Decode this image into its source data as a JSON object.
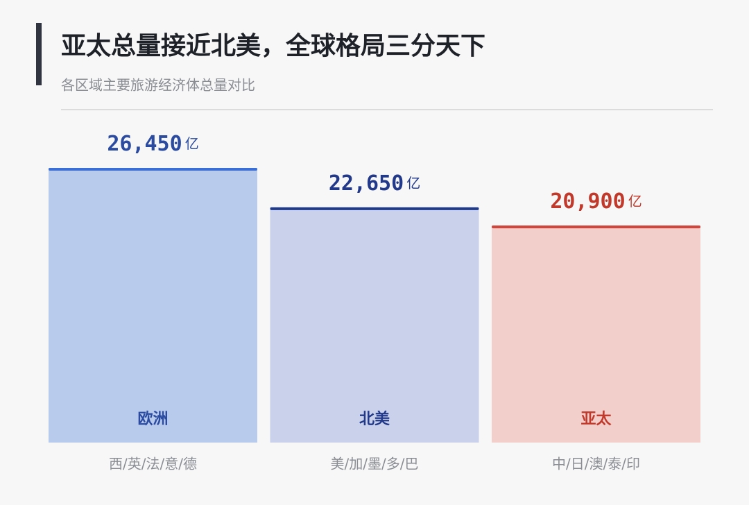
{
  "chart_data": {
    "type": "bar",
    "title": "亚太总量接近北美，全球格局三分天下",
    "subtitle": "各区域主要旅游经济体总量对比",
    "unit": "亿",
    "categories": [
      "欧洲",
      "北美",
      "亚太"
    ],
    "sublabels": [
      "西/英/法/意/德",
      "美/加/墨/多/巴",
      "中/日/澳/泰/印"
    ],
    "values": [
      26450,
      22650,
      20900
    ],
    "value_labels": [
      "26,450",
      "22,650",
      "20,900"
    ],
    "colors": [
      "#3b6fd6",
      "#1f3a8a",
      "#d0463c"
    ],
    "fills": [
      "#b9cbec",
      "#c9d2ea",
      "#f3cfcc"
    ],
    "text_colors": [
      "#2a4ba0",
      "#22398a",
      "#c0392b"
    ]
  }
}
